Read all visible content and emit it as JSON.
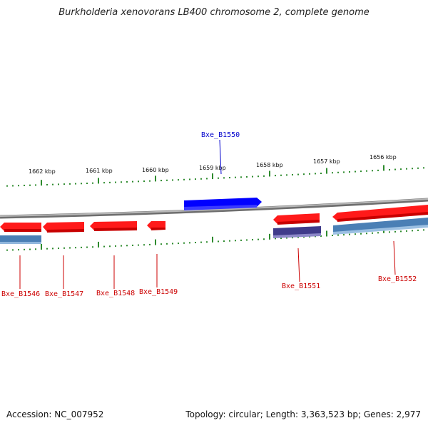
{
  "title": "Burkholderia xenovorans LB400 chromosome 2, complete genome",
  "footer": {
    "accession": "Accession: NC_007952",
    "summary": "Topology: circular; Length: 3,363,523 bp; Genes: 2,977"
  },
  "colors": {
    "backbone": "#8a8a8a",
    "tick": "#2e8b2e",
    "gene_forward": "#ff0000",
    "gene_highlight": "#0000ff",
    "cds_bar": "#4a7fb5",
    "cds_bar_dark": "#3f3b8a",
    "label_red": "#cc0000",
    "label_blue": "#0000cc"
  },
  "scale_labels": [
    "1662 kbp",
    "1661 kbp",
    "1660 kbp",
    "1659 kbp",
    "1658 kbp",
    "1657 kbp",
    "1656 kbp"
  ],
  "genes": [
    {
      "name": "Bxe_B1546",
      "strand": "minus",
      "highlight": false
    },
    {
      "name": "Bxe_B1547",
      "strand": "minus",
      "highlight": false
    },
    {
      "name": "Bxe_B1548",
      "strand": "minus",
      "highlight": false
    },
    {
      "name": "Bxe_B1549",
      "strand": "minus",
      "highlight": false
    },
    {
      "name": "Bxe_B1550",
      "strand": "plus",
      "highlight": true
    },
    {
      "name": "Bxe_B1551",
      "strand": "minus",
      "highlight": false
    },
    {
      "name": "Bxe_B1552",
      "strand": "minus",
      "highlight": false
    }
  ]
}
